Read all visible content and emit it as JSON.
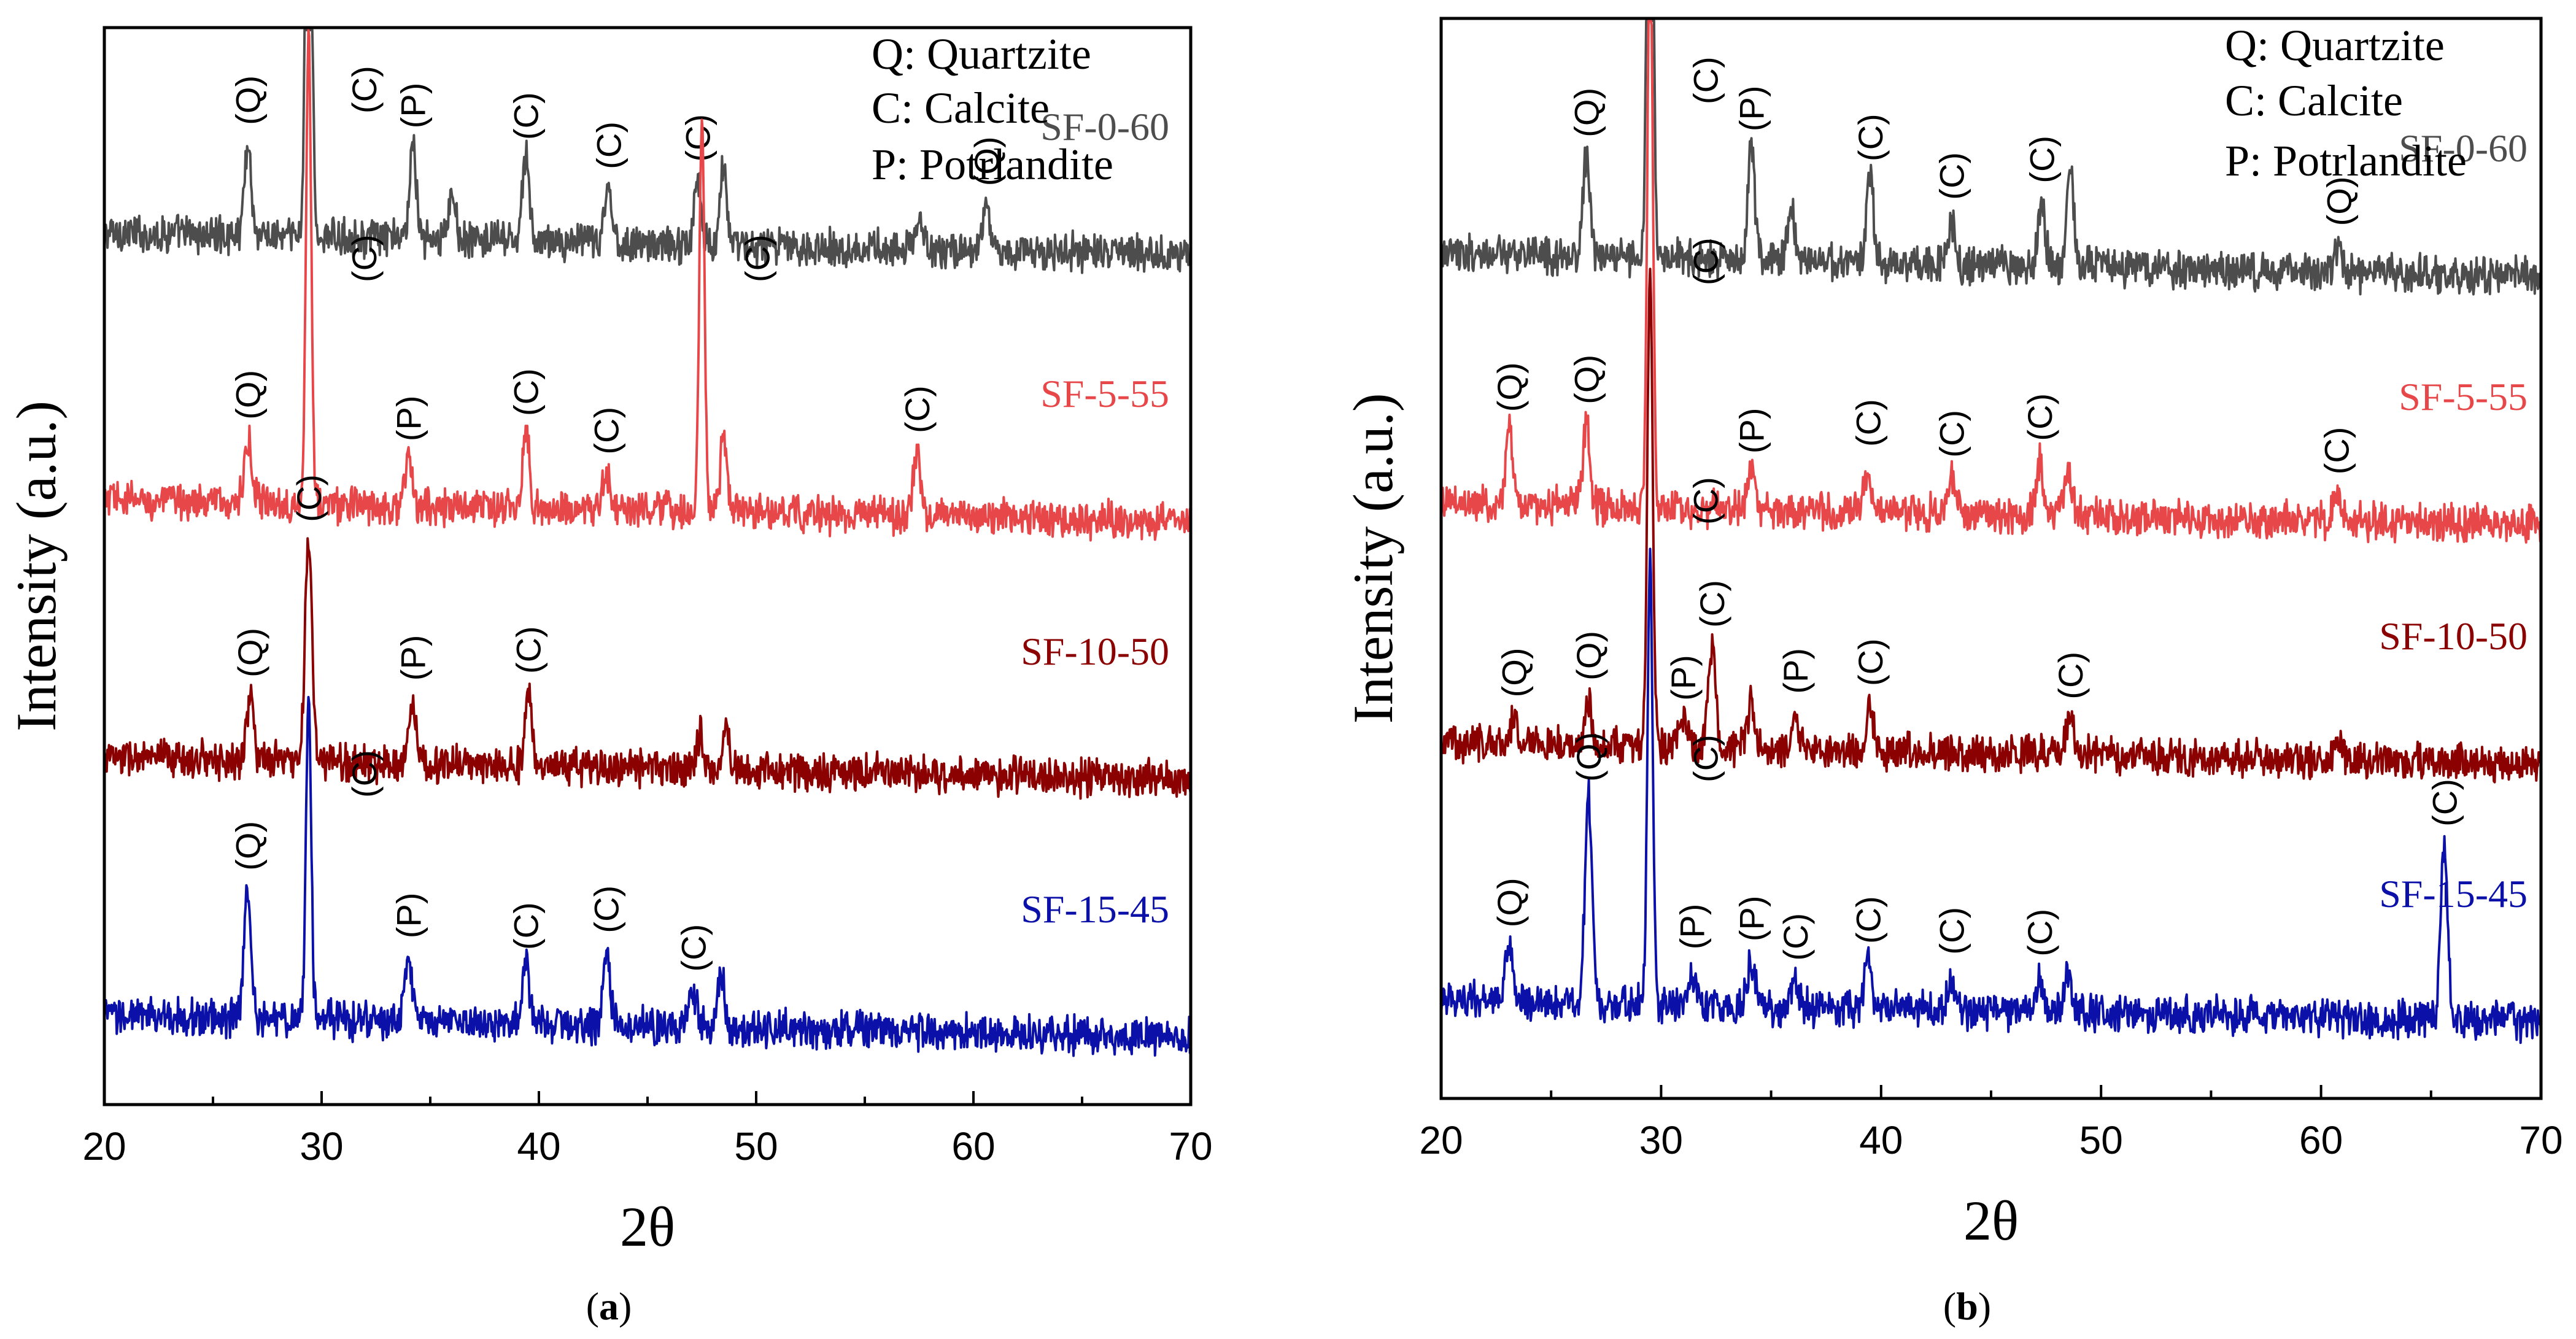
{
  "chart_data": [
    {
      "type": "line",
      "panel": "(a)",
      "panel_letter": "a",
      "xlabel": "2θ",
      "ylabel": "Intensity (a.u.)",
      "xlim": [
        20,
        70
      ],
      "xticks": [
        20,
        30,
        40,
        50,
        60,
        70
      ],
      "yticks": false,
      "legend": [
        "Q: Quartzite",
        "C: Calcite",
        "P: Potrlandite"
      ],
      "series": [
        {
          "name": "SF-0-60",
          "color": "#4d4d4d",
          "baseline": 4.5,
          "peaks": [
            {
              "x": 26.6,
              "h": 0.5,
              "label": "(Q)"
            },
            {
              "x": 29.4,
              "h": 4.2,
              "label": "(C)"
            },
            {
              "x": 34.2,
              "h": 0.5,
              "label": "(P)"
            },
            {
              "x": 36.0,
              "h": 0.25,
              "label": ""
            },
            {
              "x": 39.4,
              "h": 0.45,
              "label": "(C)"
            },
            {
              "x": 43.2,
              "h": 0.3,
              "label": "(C)"
            },
            {
              "x": 47.3,
              "h": 0.35,
              "label": "(C)"
            },
            {
              "x": 48.5,
              "h": 0.45,
              "label": ""
            },
            {
              "x": 57.5,
              "h": 0.15,
              "label": ""
            },
            {
              "x": 60.6,
              "h": 0.25,
              "label": "(Q)"
            }
          ]
        },
        {
          "name": "SF-5-55",
          "color": "#e8474a",
          "baseline": 3.05,
          "peaks": [
            {
              "x": 26.6,
              "h": 0.35,
              "label": "(Q)"
            },
            {
              "x": 29.4,
              "h": 2.55,
              "label": "(C)"
            },
            {
              "x": 34.0,
              "h": 0.25,
              "label": "(P)"
            },
            {
              "x": 39.4,
              "h": 0.4,
              "label": "(C)"
            },
            {
              "x": 43.1,
              "h": 0.2,
              "label": "(C)"
            },
            {
              "x": 47.5,
              "h": 2.1,
              "label": "(C)"
            },
            {
              "x": 48.5,
              "h": 0.4,
              "label": ""
            },
            {
              "x": 57.4,
              "h": 0.35,
              "label": "(C)"
            }
          ]
        },
        {
          "name": "SF-10-50",
          "color": "#8b0000",
          "baseline": 1.65,
          "peaks": [
            {
              "x": 26.7,
              "h": 0.35,
              "label": "(Q)"
            },
            {
              "x": 29.4,
              "h": 1.2,
              "label": "(C)"
            },
            {
              "x": 34.2,
              "h": 0.35,
              "label": "(P)"
            },
            {
              "x": 39.5,
              "h": 0.4,
              "label": "(C)"
            },
            {
              "x": 47.4,
              "h": 0.2,
              "label": ""
            },
            {
              "x": 48.6,
              "h": 0.2,
              "label": ""
            }
          ]
        },
        {
          "name": "SF-15-45",
          "color": "#0a10a8",
          "baseline": 0.25,
          "peaks": [
            {
              "x": 26.6,
              "h": 0.7,
              "label": "(Q)"
            },
            {
              "x": 29.4,
              "h": 1.75,
              "label": "(C)"
            },
            {
              "x": 34.0,
              "h": 0.35,
              "label": "(P)"
            },
            {
              "x": 39.4,
              "h": 0.3,
              "label": "(C)"
            },
            {
              "x": 43.1,
              "h": 0.4,
              "label": "(C)"
            },
            {
              "x": 47.1,
              "h": 0.2,
              "label": "(C)"
            },
            {
              "x": 48.4,
              "h": 0.3,
              "label": ""
            }
          ]
        }
      ]
    },
    {
      "type": "line",
      "panel": "(b)",
      "panel_letter": "b",
      "xlabel": "2θ",
      "ylabel": "Intensity (a.u.)",
      "xlim": [
        20,
        70
      ],
      "xticks": [
        20,
        30,
        40,
        50,
        60,
        70
      ],
      "yticks": false,
      "legend": [
        "Q: Quartzite",
        "C: Calcite",
        "P: Potrlandite"
      ],
      "series": [
        {
          "name": "SF-0-60",
          "color": "#4d4d4d",
          "baseline": 4.35,
          "peaks": [
            {
              "x": 26.6,
              "h": 0.55,
              "label": "(Q)"
            },
            {
              "x": 29.5,
              "h": 4.4,
              "label": "(C)"
            },
            {
              "x": 34.1,
              "h": 0.6,
              "label": "(P)"
            },
            {
              "x": 35.9,
              "h": 0.3,
              "label": ""
            },
            {
              "x": 39.5,
              "h": 0.45,
              "label": "(C)"
            },
            {
              "x": 43.2,
              "h": 0.25,
              "label": "(C)"
            },
            {
              "x": 47.3,
              "h": 0.35,
              "label": "(C)"
            },
            {
              "x": 48.6,
              "h": 0.55,
              "label": ""
            },
            {
              "x": 60.8,
              "h": 0.15,
              "label": "(Q)"
            }
          ]
        },
        {
          "name": "SF-5-55",
          "color": "#e8474a",
          "baseline": 3.0,
          "peaks": [
            {
              "x": 23.1,
              "h": 0.4,
              "label": "(Q)"
            },
            {
              "x": 26.6,
              "h": 0.45,
              "label": "(Q)"
            },
            {
              "x": 29.5,
              "h": 3.2,
              "label": "(C)"
            },
            {
              "x": 34.1,
              "h": 0.2,
              "label": "(P)"
            },
            {
              "x": 39.4,
              "h": 0.25,
              "label": "(C)"
            },
            {
              "x": 43.2,
              "h": 0.2,
              "label": "(C)"
            },
            {
              "x": 47.2,
              "h": 0.3,
              "label": "(C)"
            },
            {
              "x": 48.5,
              "h": 0.25,
              "label": ""
            },
            {
              "x": 60.7,
              "h": 0.15,
              "label": "(C)"
            }
          ]
        },
        {
          "name": "SF-10-50",
          "color": "#8b0000",
          "baseline": 1.7,
          "peaks": [
            {
              "x": 23.3,
              "h": 0.15,
              "label": "(Q)"
            },
            {
              "x": 26.7,
              "h": 0.25,
              "label": "(Q)"
            },
            {
              "x": 29.5,
              "h": 2.6,
              "label": "(C)"
            },
            {
              "x": 31.0,
              "h": 0.15,
              "label": "(P)"
            },
            {
              "x": 32.3,
              "h": 0.55,
              "label": "(C)"
            },
            {
              "x": 34.1,
              "h": 0.25,
              "label": ""
            },
            {
              "x": 36.1,
              "h": 0.2,
              "label": "(P)"
            },
            {
              "x": 39.5,
              "h": 0.25,
              "label": "(C)"
            },
            {
              "x": 48.6,
              "h": 0.2,
              "label": "(C)"
            },
            {
              "x": 60.8,
              "h": 0.1,
              "label": ""
            }
          ]
        },
        {
          "name": "SF-15-45",
          "color": "#0a10a8",
          "baseline": 0.3,
          "peaks": [
            {
              "x": 23.1,
              "h": 0.3,
              "label": "(Q)"
            },
            {
              "x": 26.7,
              "h": 1.1,
              "label": "(Q)"
            },
            {
              "x": 29.5,
              "h": 2.4,
              "label": "(C)"
            },
            {
              "x": 31.4,
              "h": 0.2,
              "label": "(P)"
            },
            {
              "x": 34.1,
              "h": 0.25,
              "label": "(P)"
            },
            {
              "x": 36.1,
              "h": 0.15,
              "label": "(C)"
            },
            {
              "x": 39.4,
              "h": 0.25,
              "label": "(C)"
            },
            {
              "x": 43.2,
              "h": 0.2,
              "label": "(C)"
            },
            {
              "x": 47.2,
              "h": 0.2,
              "label": "(C)"
            },
            {
              "x": 48.5,
              "h": 0.2,
              "label": ""
            },
            {
              "x": 65.6,
              "h": 0.95,
              "label": "(C)"
            }
          ]
        }
      ]
    }
  ]
}
